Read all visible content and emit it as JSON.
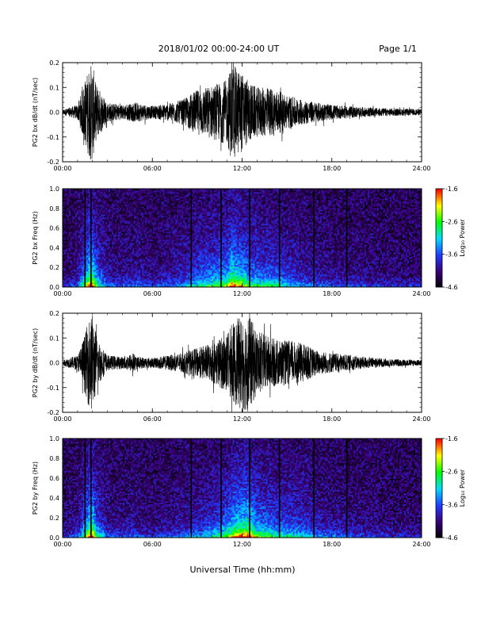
{
  "header": {
    "title": "2018/01/02  00:00-24:00 UT",
    "page": "Page 1/1"
  },
  "xlabel": "Universal Time (hh:mm)",
  "colors": {
    "trace": "#000000",
    "spectrogram_colormap": [
      "#000000",
      "#3c0078",
      "#1e3cff",
      "#00dcff",
      "#00ff00",
      "#ffff00",
      "#ff0000"
    ]
  },
  "chart_data": [
    {
      "type": "line",
      "id": "bx-wave",
      "ylabel": "PG2 bx dB/dt (nT/sec)",
      "xlim": [
        "00:00",
        "24:00"
      ],
      "xticks": [
        "00:00",
        "06:00",
        "12:00",
        "18:00",
        "24:00"
      ],
      "ylim": [
        -0.2,
        0.2
      ],
      "yticks": [
        "-0.2",
        "-0.1",
        "0.0",
        "0.1",
        "0.2"
      ],
      "envelope": {
        "hours": [
          0,
          1,
          1.5,
          1.8,
          2,
          2.2,
          3,
          4,
          5,
          6,
          7,
          8,
          8.5,
          9,
          10,
          11,
          11.3,
          11.6,
          12,
          12.5,
          13,
          14,
          15,
          16,
          17,
          18,
          20,
          22,
          24
        ],
        "amplitude": [
          0.01,
          0.03,
          0.13,
          0.19,
          0.2,
          0.12,
          0.04,
          0.03,
          0.04,
          0.025,
          0.035,
          0.05,
          0.07,
          0.09,
          0.11,
          0.13,
          0.2,
          0.18,
          0.16,
          0.12,
          0.1,
          0.1,
          0.07,
          0.05,
          0.04,
          0.03,
          0.02,
          0.015,
          0.012
        ]
      }
    },
    {
      "type": "heatmap",
      "id": "bx-spec",
      "ylabel": "PG2 bx Freq (Hz)",
      "xlim": [
        "00:00",
        "24:00"
      ],
      "xticks": [
        "00:00",
        "06:00",
        "12:00",
        "18:00",
        "24:00"
      ],
      "ylim": [
        0.0,
        1.0
      ],
      "yticks": [
        "0.0",
        "0.2",
        "0.4",
        "0.6",
        "0.8",
        "1.0"
      ],
      "colorbar": {
        "label": "Log₁₀ Power",
        "range": [
          -4.6,
          -1.6
        ],
        "ticks": [
          "-1.6",
          "-2.6",
          "-3.6",
          "-4.6"
        ]
      },
      "vertical_lines_hours": [
        1.5,
        1.9,
        8.6,
        10.6,
        12.5,
        14.5,
        16.8,
        19.0
      ]
    },
    {
      "type": "line",
      "id": "by-wave",
      "ylabel": "PG2 by dB/dt (nT/sec)",
      "xlim": [
        "00:00",
        "24:00"
      ],
      "xticks": [
        "00:00",
        "06:00",
        "12:00",
        "18:00",
        "24:00"
      ],
      "ylim": [
        -0.2,
        0.2
      ],
      "yticks": [
        "-0.2",
        "-0.1",
        "0.0",
        "0.1",
        "0.2"
      ],
      "envelope": {
        "hours": [
          0,
          1,
          1.5,
          1.8,
          2,
          2.3,
          3,
          4,
          4.7,
          5,
          6,
          7,
          8,
          9,
          10,
          11,
          11.5,
          12,
          12.4,
          13,
          14,
          15,
          16,
          17,
          18,
          20,
          22,
          24
        ],
        "amplitude": [
          0.012,
          0.03,
          0.12,
          0.19,
          0.2,
          0.1,
          0.03,
          0.025,
          0.04,
          0.025,
          0.02,
          0.03,
          0.04,
          0.06,
          0.08,
          0.12,
          0.17,
          0.19,
          0.2,
          0.13,
          0.1,
          0.09,
          0.08,
          0.05,
          0.04,
          0.025,
          0.015,
          0.012
        ]
      }
    },
    {
      "type": "heatmap",
      "id": "by-spec",
      "ylabel": "PG2 by Freq (Hz)",
      "xlim": [
        "00:00",
        "24:00"
      ],
      "xticks": [
        "00:00",
        "06:00",
        "12:00",
        "18:00",
        "24:00"
      ],
      "ylim": [
        0.0,
        1.0
      ],
      "yticks": [
        "0.0",
        "0.2",
        "0.4",
        "0.6",
        "0.8",
        "1.0"
      ],
      "colorbar": {
        "label": "Log₁₀ Power",
        "range": [
          -4.6,
          -1.6
        ],
        "ticks": [
          "-1.6",
          "-2.6",
          "-3.6",
          "-4.6"
        ]
      },
      "vertical_lines_hours": [
        1.5,
        1.9,
        8.6,
        10.6,
        12.5,
        14.5,
        16.8,
        19.0
      ]
    }
  ]
}
